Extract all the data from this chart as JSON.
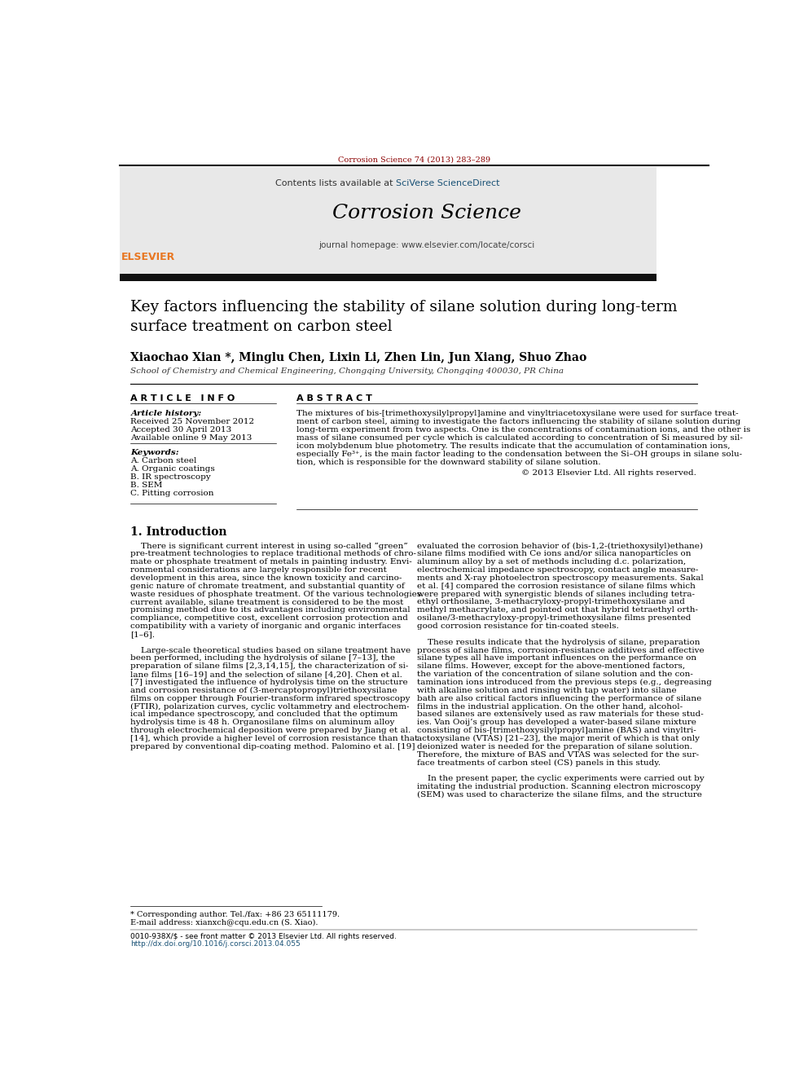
{
  "page_width": 9.92,
  "page_height": 13.23,
  "bg_color": "#ffffff",
  "journal_ref": "Corrosion Science 74 (2013) 283–289",
  "journal_ref_color": "#8B0000",
  "header_bg": "#e8e8e8",
  "header_link_color": "#1a5276",
  "journal_name": "Corrosion Science",
  "journal_homepage": "journal homepage: www.elsevier.com/locate/corsci",
  "orange_color": "#e87722",
  "title_text": "Key factors influencing the stability of silane solution during long-term\nsurface treatment on carbon steel",
  "authors": "Xiaochao Xian *, Minglu Chen, Lixin Li, Zhen Lin, Jun Xiang, Shuo Zhao",
  "affiliation": "School of Chemistry and Chemical Engineering, Chongqing University, Chongqing 400030, PR China",
  "article_info_title": "A R T I C L E   I N F O",
  "article_history_label": "Article history:",
  "received": "Received 25 November 2012",
  "accepted": "Accepted 30 April 2013",
  "available": "Available online 9 May 2013",
  "keywords_label": "Keywords:",
  "keywords": [
    "A. Carbon steel",
    "A. Organic coatings",
    "B. IR spectroscopy",
    "B. SEM",
    "C. Pitting corrosion"
  ],
  "abstract_title": "A B S T R A C T",
  "copyright": "© 2013 Elsevier Ltd. All rights reserved.",
  "intro_heading": "1. Introduction",
  "footnote1": "* Corresponding author. Tel./fax: +86 23 65111179.",
  "footnote2": "E-mail address: xianxch@cqu.edu.cn (S. Xiao).",
  "doi_line": "0010-938X/$ - see front matter © 2013 Elsevier Ltd. All rights reserved.",
  "doi_url": "http://dx.doi.org/10.1016/j.corsci.2013.04.055",
  "abstract_lines": [
    "The mixtures of bis-[trimethoxysilylpropyl]amine and vinyltriacetoxysilane were used for surface treat-",
    "ment of carbon steel, aiming to investigate the factors influencing the stability of silane solution during",
    "long-term experiment from two aspects. One is the concentrations of contamination ions, and the other is",
    "mass of silane consumed per cycle which is calculated according to concentration of Si measured by sil-",
    "icon molybdenum blue photometry. The results indicate that the accumulation of contamination ions,",
    "especially Fe³⁺, is the main factor leading to the condensation between the Si–OH groups in silane solu-",
    "tion, which is responsible for the downward stability of silane solution."
  ],
  "intro_col1_lines": [
    "    There is significant current interest in using so-called “green”",
    "pre-treatment technologies to replace traditional methods of chro-",
    "mate or phosphate treatment of metals in painting industry. Envi-",
    "ronmental considerations are largely responsible for recent",
    "development in this area, since the known toxicity and carcino-",
    "genic nature of chromate treatment, and substantial quantity of",
    "waste residues of phosphate treatment. Of the various technologies",
    "current available, silane treatment is considered to be the most",
    "promising method due to its advantages including environmental",
    "compliance, competitive cost, excellent corrosion protection and",
    "compatibility with a variety of inorganic and organic interfaces",
    "[1–6].",
    "",
    "    Large-scale theoretical studies based on silane treatment have",
    "been performed, including the hydrolysis of silane [7–13], the",
    "preparation of silane films [2,3,14,15], the characterization of si-",
    "lane films [16–19] and the selection of silane [4,20]. Chen et al.",
    "[7] investigated the influence of hydrolysis time on the structure",
    "and corrosion resistance of (3-mercaptopropyl)triethoxysilane",
    "films on copper through Fourier-transform infrared spectroscopy",
    "(FTIR), polarization curves, cyclic voltammetry and electrochem-",
    "ical impedance spectroscopy, and concluded that the optimum",
    "hydrolysis time is 48 h. Organosilane films on aluminum alloy",
    "through electrochemical deposition were prepared by Jiang et al.",
    "[14], which provide a higher level of corrosion resistance than that",
    "prepared by conventional dip-coating method. Palomino et al. [19]"
  ],
  "intro_col2_lines": [
    "evaluated the corrosion behavior of (bis-1,2-(triethoxysilyl)ethane)",
    "silane films modified with Ce ions and/or silica nanoparticles on",
    "aluminum alloy by a set of methods including d.c. polarization,",
    "electrochemical impedance spectroscopy, contact angle measure-",
    "ments and X-ray photoelectron spectroscopy measurements. Sakal",
    "et al. [4] compared the corrosion resistance of silane films which",
    "were prepared with synergistic blends of silanes including tetra-",
    "ethyl orthosilane, 3-methacryloxy-propyl-trimethoxysilane and",
    "methyl methacrylate, and pointed out that hybrid tetraethyl orth-",
    "osilane/3-methacryloxy-propyl-trimethoxysilane films presented",
    "good corrosion resistance for tin-coated steels.",
    "",
    "    These results indicate that the hydrolysis of silane, preparation",
    "process of silane films, corrosion-resistance additives and effective",
    "silane types all have important influences on the performance on",
    "silane films. However, except for the above-mentioned factors,",
    "the variation of the concentration of silane solution and the con-",
    "tamination ions introduced from the previous steps (e.g., degreasing",
    "with alkaline solution and rinsing with tap water) into silane",
    "bath are also critical factors influencing the performance of silane",
    "films in the industrial application. On the other hand, alcohol-",
    "based silanes are extensively used as raw materials for these stud-",
    "ies. Van Ooij’s group has developed a water-based silane mixture",
    "consisting of bis-[trimethoxysilylpropyl]amine (BAS) and vinyltri-",
    "actoxysilane (VTAS) [21–23], the major merit of which is that only",
    "deionized water is needed for the preparation of silane solution.",
    "Therefore, the mixture of BAS and VTAS was selected for the sur-",
    "face treatments of carbon steel (CS) panels in this study.",
    "",
    "    In the present paper, the cyclic experiments were carried out by",
    "imitating the industrial production. Scanning electron microscopy",
    "(SEM) was used to characterize the silane films, and the structure"
  ]
}
